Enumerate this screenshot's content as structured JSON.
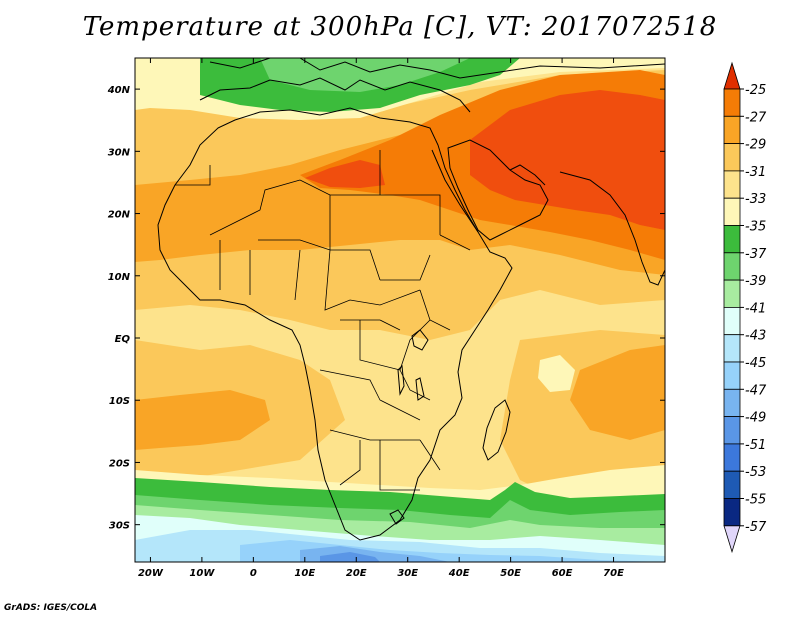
{
  "title": "Temperature at 300hPa [C], VT: 2017072518",
  "credit": "GrADS: IGES/COLA",
  "map": {
    "lon_range": [
      -23,
      80
    ],
    "lat_range": [
      -36,
      45
    ],
    "lat_ticks": [
      {
        "label": "40N",
        "lat": 40
      },
      {
        "label": "30N",
        "lat": 30
      },
      {
        "label": "20N",
        "lat": 20
      },
      {
        "label": "10N",
        "lat": 10
      },
      {
        "label": "EQ",
        "lat": 0
      },
      {
        "label": "10S",
        "lat": -10
      },
      {
        "label": "20S",
        "lat": -20
      },
      {
        "label": "30S",
        "lat": -30
      }
    ],
    "lon_ticks": [
      {
        "label": "20W",
        "lon": -20
      },
      {
        "label": "10W",
        "lon": -10
      },
      {
        "label": "0",
        "lon": 0
      },
      {
        "label": "10E",
        "lon": 10
      },
      {
        "label": "20E",
        "lon": 20
      },
      {
        "label": "30E",
        "lon": 30
      },
      {
        "label": "40E",
        "lon": 40
      },
      {
        "label": "50E",
        "lon": 50
      },
      {
        "label": "60E",
        "lon": 60
      },
      {
        "label": "70E",
        "lon": 70
      }
    ]
  },
  "colorbar": {
    "labels": [
      "-25",
      "-27",
      "-29",
      "-31",
      "-33",
      "-35",
      "-37",
      "-39",
      "-41",
      "-43",
      "-45",
      "-47",
      "-49",
      "-51",
      "-53",
      "-55",
      "-57"
    ],
    "colors": [
      "#f04e0e",
      "#f57c06",
      "#f9a526",
      "#fbc85a",
      "#fde38c",
      "#fef7b8",
      "#3cbc3c",
      "#6ed46e",
      "#a8eca0",
      "#e0fffa",
      "#b4e6fa",
      "#96d2fa",
      "#78b4f0",
      "#5a96e6",
      "#3c78dc",
      "#1e5ab4",
      "#0a2882"
    ],
    "upper_arrow_color": "#e02f00",
    "lower_arrow_color": "#e0d6fa"
  },
  "field": {
    "palette": {
      "t25": "#f04e0e",
      "t27": "#f57c06",
      "t29": "#f9a526",
      "t31": "#fbc85a",
      "t33": "#fde38c",
      "t35": "#fef7b8",
      "t37": "#3cbc3c",
      "t39": "#6ed46e",
      "t41": "#a8eca0",
      "t43": "#e0fffa",
      "t45": "#b4e6fa",
      "t47": "#96d2fa",
      "t49": "#78b4f0",
      "t51": "#5a96e6"
    }
  }
}
